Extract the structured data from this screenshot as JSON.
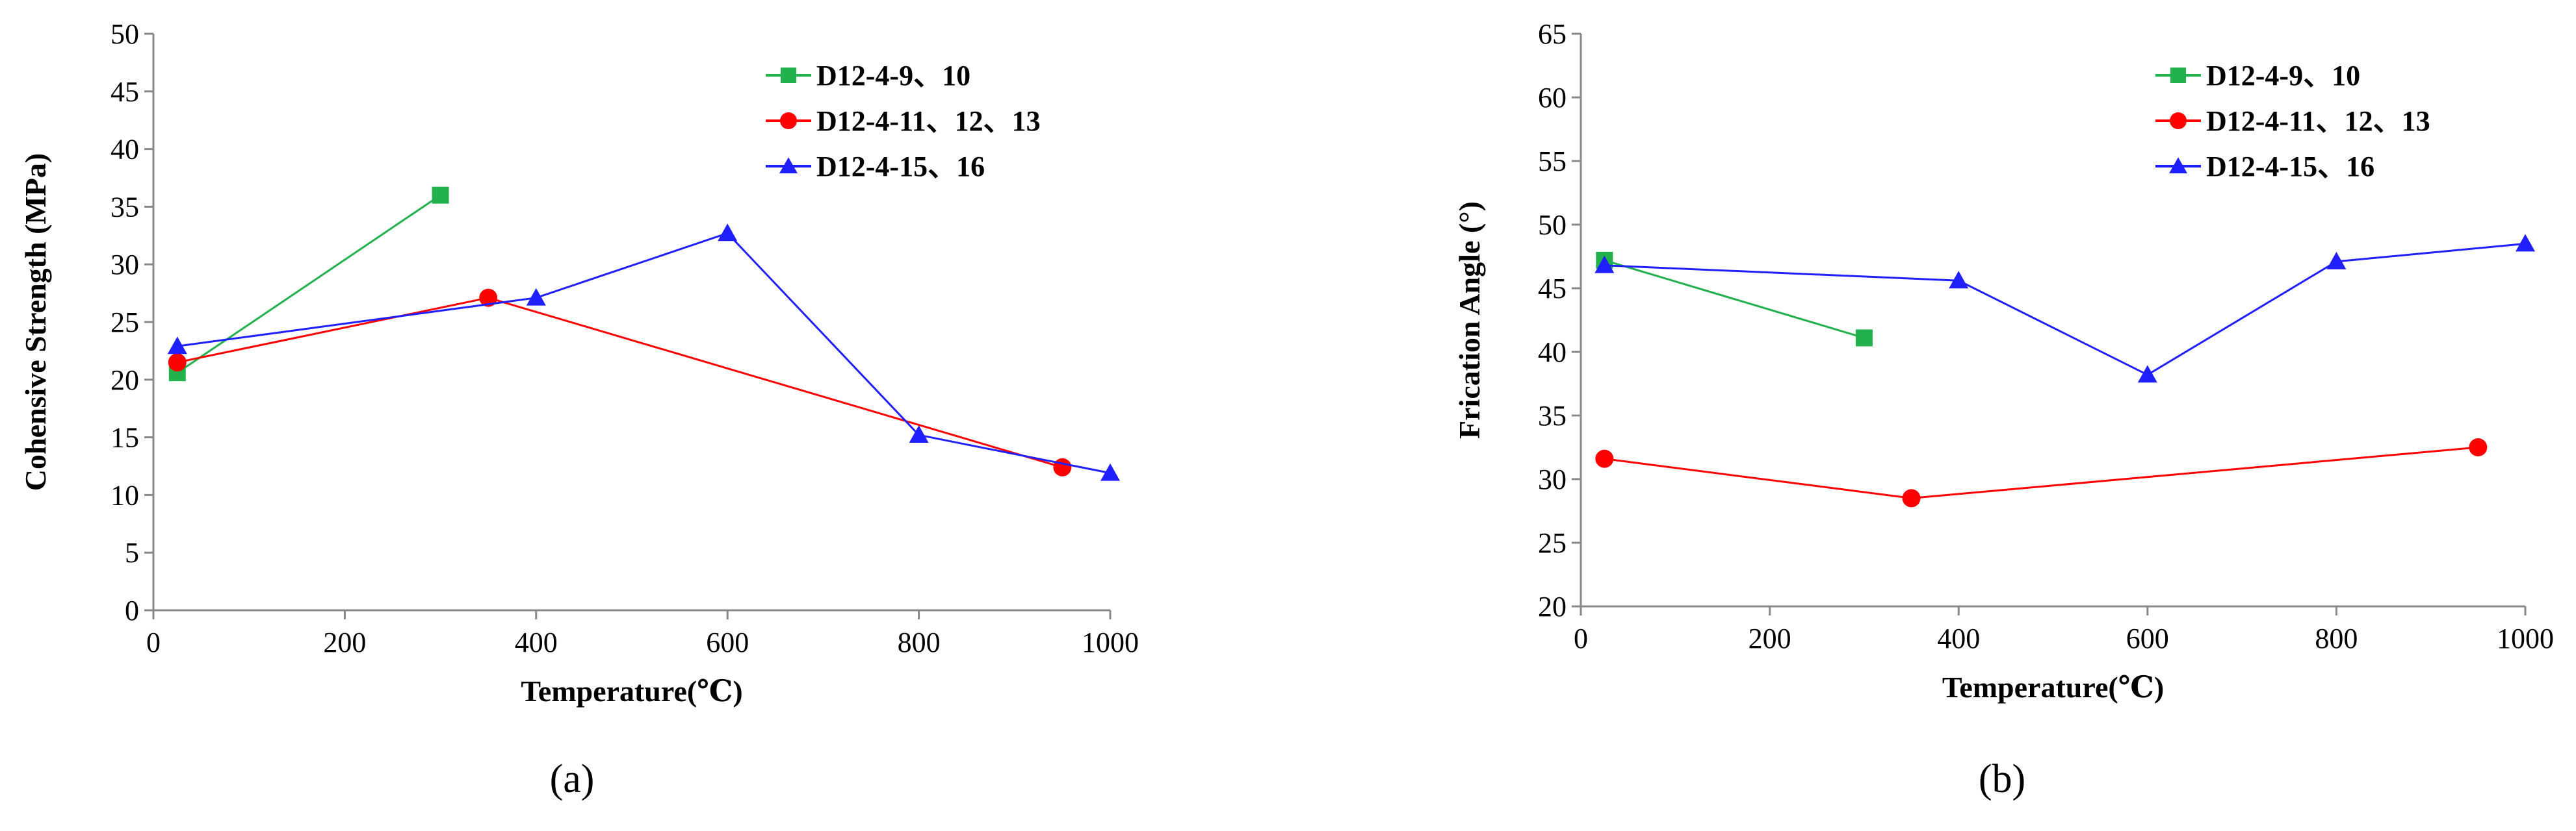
{
  "chart_data": [
    {
      "type": "line",
      "panel_label": "(a)",
      "title": "",
      "xlabel": "Temperature(℃)",
      "ylabel": "Cohensive Strength (MPa)",
      "xlim": [
        0,
        1000
      ],
      "ylim": [
        0,
        50
      ],
      "xticks": [
        "0",
        "200",
        "400",
        "600",
        "800",
        "1000"
      ],
      "yticks": [
        "0",
        "5",
        "10",
        "15",
        "20",
        "25",
        "30",
        "35",
        "40",
        "45",
        "50"
      ],
      "grid": false,
      "legend_position": "top-right",
      "series": [
        {
          "name": "D12-4-9、10",
          "color": "#22b14c",
          "marker": "square",
          "x": [
            25,
            300
          ],
          "y": [
            20.6,
            36.0
          ]
        },
        {
          "name": "D12-4-11、12、13",
          "color": "#ff0000",
          "marker": "circle",
          "x": [
            25,
            350,
            950
          ],
          "y": [
            21.5,
            27.1,
            12.4
          ]
        },
        {
          "name": "D12-4-15、16",
          "color": "#1f1fff",
          "marker": "triangle",
          "x": [
            25,
            400,
            600,
            800,
            1000
          ],
          "y": [
            22.9,
            27.1,
            32.7,
            15.2,
            11.9
          ]
        }
      ]
    },
    {
      "type": "line",
      "panel_label": "(b)",
      "title": "",
      "xlabel": "Temperature(℃)",
      "ylabel": "Frication Angle (°)",
      "xlim": [
        0,
        1000
      ],
      "ylim": [
        20,
        65
      ],
      "xticks": [
        "0",
        "200",
        "400",
        "600",
        "800",
        "1000"
      ],
      "yticks": [
        "20",
        "25",
        "30",
        "35",
        "40",
        "45",
        "50",
        "55",
        "60",
        "65"
      ],
      "grid": false,
      "legend_position": "top-right",
      "series": [
        {
          "name": "D12-4-9、10",
          "color": "#22b14c",
          "marker": "square",
          "x": [
            25,
            300
          ],
          "y": [
            47.2,
            41.1
          ]
        },
        {
          "name": "D12-4-11、12、13",
          "color": "#ff0000",
          "marker": "circle",
          "x": [
            25,
            350,
            950
          ],
          "y": [
            31.6,
            28.5,
            32.5
          ]
        },
        {
          "name": "D12-4-15、16",
          "color": "#1f1fff",
          "marker": "triangle",
          "x": [
            25,
            400,
            600,
            800,
            1000
          ],
          "y": [
            46.8,
            45.6,
            38.2,
            47.1,
            48.5
          ]
        }
      ]
    }
  ]
}
